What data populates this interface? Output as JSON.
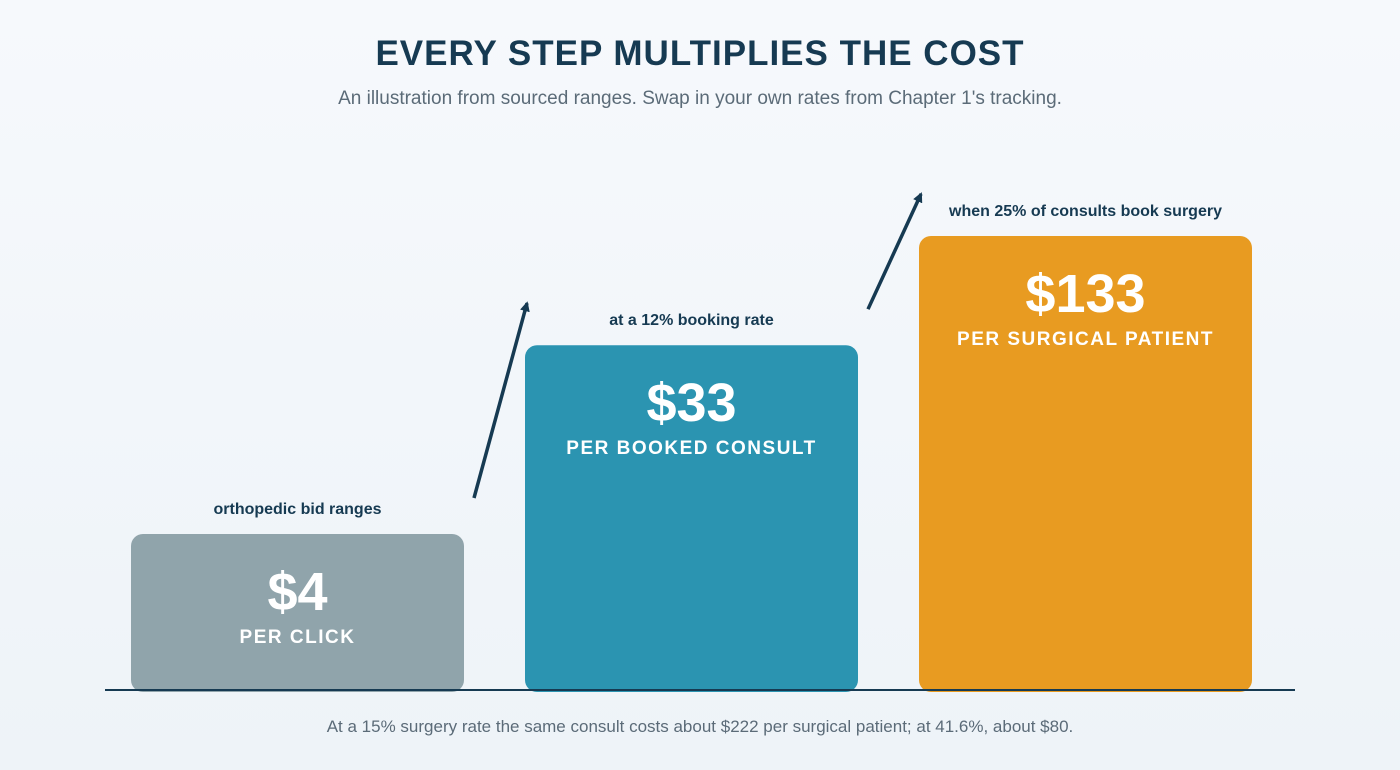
{
  "chart_data": {
    "type": "bar",
    "title": "EVERY STEP MULTIPLIES THE COST",
    "subtitle": "An illustration from sourced ranges. Swap in your own rates from Chapter 1's tracking.",
    "footnote": "At a 15% surgery rate the same consult costs about $222 per surgical patient; at 41.6%, about $80.",
    "categories": [
      "PER CLICK",
      "PER BOOKED CONSULT",
      "PER SURGICAL PATIENT"
    ],
    "values": [
      4,
      33,
      133
    ],
    "value_labels": [
      "$4",
      "$33",
      "$133"
    ],
    "annotations": [
      "orthopedic bid ranges",
      "at a 12% booking rate",
      "when 25% of consults book surgery"
    ],
    "colors": [
      "#90a4ab",
      "#2b94b1",
      "#e89b21"
    ],
    "axis_color": "#163a52",
    "arrows_between_bars": true
  }
}
